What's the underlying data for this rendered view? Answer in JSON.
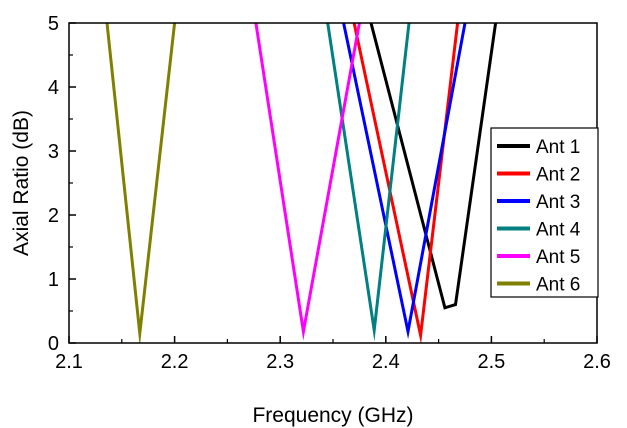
{
  "chart_data": {
    "type": "line",
    "title": "",
    "xlabel": "Frequency (GHz)",
    "ylabel": "Axial Ratio (dB)",
    "xlim": [
      2.1,
      2.6
    ],
    "ylim": [
      0,
      5
    ],
    "xticks": [
      "2.1",
      "2.2",
      "2.3",
      "2.4",
      "2.5",
      "2.6"
    ],
    "yticks": [
      "0",
      "1",
      "2",
      "3",
      "4",
      "5"
    ],
    "grid": false,
    "legend": "right",
    "series": [
      {
        "name": "Ant 1",
        "color": "#000000",
        "points": [
          [
            2.386,
            5.0
          ],
          [
            2.456,
            0.55
          ],
          [
            2.466,
            0.6
          ],
          [
            2.504,
            5.0
          ]
        ]
      },
      {
        "name": "Ant 2",
        "color": "#ff0000",
        "points": [
          [
            2.37,
            5.0
          ],
          [
            2.433,
            0.12
          ],
          [
            2.468,
            5.0
          ]
        ]
      },
      {
        "name": "Ant 3",
        "color": "#0000ff",
        "points": [
          [
            2.36,
            5.0
          ],
          [
            2.421,
            0.18
          ],
          [
            2.475,
            5.0
          ]
        ]
      },
      {
        "name": "Ant 4",
        "color": "#008080",
        "points": [
          [
            2.345,
            5.0
          ],
          [
            2.389,
            0.2
          ],
          [
            2.422,
            5.0
          ]
        ]
      },
      {
        "name": "Ant 5",
        "color": "#ff00ff",
        "points": [
          [
            2.277,
            5.0
          ],
          [
            2.322,
            0.18
          ],
          [
            2.375,
            5.0
          ]
        ]
      },
      {
        "name": "Ant 6",
        "color": "#808000",
        "points": [
          [
            2.136,
            5.0
          ],
          [
            2.167,
            0.15
          ],
          [
            2.2,
            5.0
          ]
        ]
      }
    ]
  }
}
